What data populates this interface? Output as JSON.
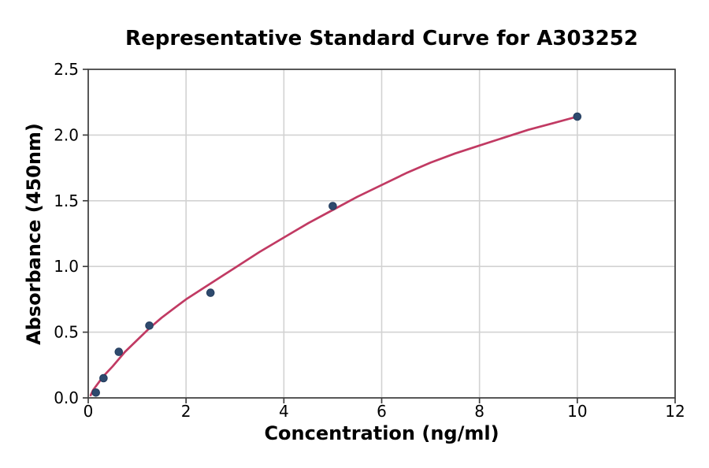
{
  "chart_data": {
    "type": "scatter",
    "title": "Representative Standard Curve for A303252",
    "xlabel": "Concentration (ng/ml)",
    "ylabel": "Absorbance (450nm)",
    "xlim": [
      0,
      12
    ],
    "ylim": [
      0,
      2.5
    ],
    "x_ticks": [
      0,
      2,
      4,
      6,
      8,
      10,
      12
    ],
    "y_ticks": [
      0.0,
      0.5,
      1.0,
      1.5,
      2.0,
      2.5
    ],
    "y_tick_decimals": 1,
    "grid": true,
    "legend": "none",
    "series": [
      {
        "name": "standard-points",
        "type": "scatter",
        "color": "#2e4a6e",
        "edge_color": "#243d5e",
        "x": [
          0.156,
          0.313,
          0.625,
          1.25,
          2.5,
          5,
          10
        ],
        "y": [
          0.04,
          0.15,
          0.35,
          0.55,
          0.8,
          1.46,
          2.14
        ]
      },
      {
        "name": "fit-curve",
        "type": "line",
        "color": "#c13a63",
        "x": [
          0.05,
          0.1,
          0.2,
          0.3,
          0.4,
          0.5,
          0.75,
          1.0,
          1.25,
          1.5,
          1.75,
          2.0,
          2.25,
          2.5,
          2.75,
          3.0,
          3.5,
          4.0,
          4.5,
          5.0,
          5.5,
          6.0,
          6.5,
          7.0,
          7.5,
          8.0,
          8.5,
          9.0,
          9.5,
          10.0
        ],
        "y": [
          0.02,
          0.06,
          0.11,
          0.16,
          0.2,
          0.24,
          0.35,
          0.44,
          0.53,
          0.61,
          0.68,
          0.75,
          0.81,
          0.87,
          0.93,
          0.99,
          1.11,
          1.22,
          1.33,
          1.43,
          1.53,
          1.62,
          1.71,
          1.79,
          1.86,
          1.92,
          1.98,
          2.04,
          2.09,
          2.14
        ]
      }
    ],
    "colors": {
      "background": "#ffffff",
      "grid": "#d2d2d2",
      "spine": "#3f3f3f",
      "tick": "#3f3f3f",
      "text": "#000000"
    }
  }
}
